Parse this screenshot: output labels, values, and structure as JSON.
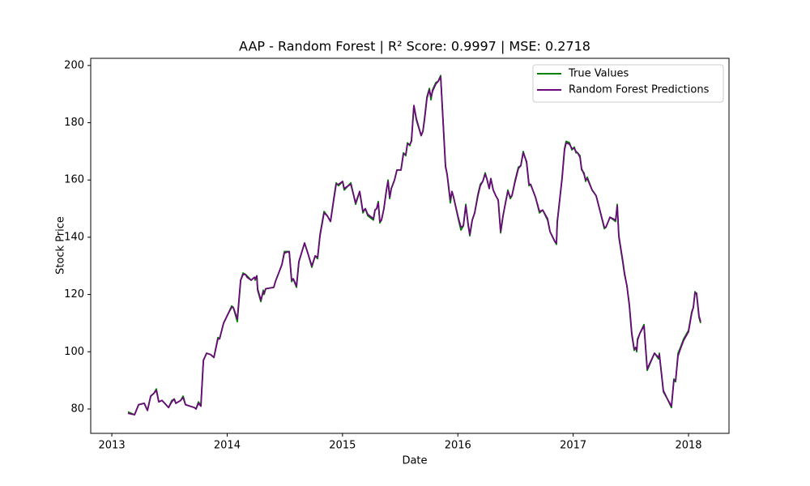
{
  "chart_data": {
    "type": "line",
    "title": "AAP - Random Forest | R² Score: 0.9997 | MSE: 0.2718",
    "x_label": "Date",
    "y_label": "Stock Price",
    "x": [
      2013.14,
      2013.197,
      2013.232,
      2013.281,
      2013.309,
      2013.337,
      2013.365,
      2013.386,
      2013.407,
      2013.435,
      2013.47,
      2013.492,
      2013.52,
      2013.541,
      2013.555,
      2013.576,
      2013.597,
      2013.618,
      2013.639,
      2013.716,
      2013.73,
      2013.751,
      2013.772,
      2013.794,
      2013.822,
      2013.857,
      2013.885,
      2013.92,
      2013.934,
      2013.969,
      2014.011,
      2014.039,
      2014.053,
      2014.088,
      2014.117,
      2014.138,
      2014.159,
      2014.173,
      2014.208,
      2014.236,
      2014.243,
      2014.257,
      2014.264,
      2014.292,
      2014.313,
      2014.32,
      2014.334,
      2014.404,
      2014.418,
      2014.461,
      2014.475,
      2014.496,
      2014.538,
      2014.559,
      2014.573,
      2014.601,
      2014.622,
      2014.671,
      2014.699,
      2014.734,
      2014.763,
      2014.784,
      2014.805,
      2014.84,
      2014.868,
      2014.896,
      2014.924,
      2014.945,
      2014.966,
      2015.001,
      2015.015,
      2015.05,
      2015.072,
      2015.114,
      2015.149,
      2015.177,
      2015.198,
      2015.219,
      2015.268,
      2015.282,
      2015.296,
      2015.31,
      2015.324,
      2015.338,
      2015.359,
      2015.381,
      2015.395,
      2015.409,
      2015.423,
      2015.451,
      2015.472,
      2015.507,
      2015.528,
      2015.549,
      2015.563,
      2015.584,
      2015.598,
      2015.619,
      2015.64,
      2015.682,
      2015.697,
      2015.711,
      2015.732,
      2015.753,
      2015.767,
      2015.781,
      2015.809,
      2015.83,
      2015.851,
      2015.893,
      2015.907,
      2015.935,
      2015.949,
      2015.963,
      2016.006,
      2016.027,
      2016.048,
      2016.069,
      2016.09,
      2016.104,
      2016.125,
      2016.146,
      2016.174,
      2016.195,
      2016.216,
      2016.237,
      2016.251,
      2016.272,
      2016.286,
      2016.307,
      2016.329,
      2016.35,
      2016.371,
      2016.392,
      2016.413,
      2016.434,
      2016.455,
      2016.469,
      2016.497,
      2016.525,
      2016.546,
      2016.567,
      2016.596,
      2016.617,
      2016.631,
      2016.673,
      2016.708,
      2016.736,
      2016.778,
      2016.799,
      2016.841,
      2016.855,
      2016.862,
      2016.904,
      2016.925,
      2016.939,
      2016.968,
      2016.989,
      2017.01,
      2017.024,
      2017.038,
      2017.059,
      2017.073,
      2017.094,
      2017.108,
      2017.122,
      2017.164,
      2017.199,
      2017.234,
      2017.27,
      2017.284,
      2017.319,
      2017.368,
      2017.382,
      2017.396,
      2017.431,
      2017.445,
      2017.466,
      2017.487,
      2017.508,
      2017.529,
      2017.543,
      2017.551,
      2017.558,
      2017.579,
      2017.614,
      2017.642,
      2017.705,
      2017.74,
      2017.747,
      2017.782,
      2017.817,
      2017.852,
      2017.873,
      2017.888,
      2017.909,
      2017.93,
      2017.958,
      2018.0,
      2018.028,
      2018.042,
      2018.056,
      2018.07,
      2018.091,
      2018.105
    ],
    "series": [
      {
        "name": "True Values",
        "color": "#008000",
        "values": [
          79,
          78,
          81.5,
          82,
          79.5,
          84.5,
          85.5,
          87,
          82.5,
          83,
          81.5,
          80.5,
          83,
          83.5,
          82,
          82.5,
          83,
          84.5,
          81.5,
          80.5,
          80,
          82.5,
          81,
          97,
          99.5,
          99,
          98,
          105,
          104.5,
          110,
          113.5,
          116,
          115.5,
          110.5,
          125,
          127.5,
          127,
          126.5,
          125,
          126,
          125,
          126.5,
          121.5,
          117.5,
          121.5,
          120,
          122,
          122.5,
          124.5,
          129,
          130.5,
          135,
          135,
          124.5,
          125.5,
          122.5,
          131.5,
          138,
          134.5,
          129.5,
          133.5,
          132.5,
          141,
          149,
          147.5,
          145.5,
          153.5,
          159,
          158,
          159.5,
          156.5,
          158,
          159,
          151.5,
          156,
          148.5,
          150,
          147.5,
          146,
          149.5,
          150,
          152.5,
          145,
          146,
          150,
          156.5,
          160,
          153.5,
          157,
          160,
          163.5,
          163.5,
          169.5,
          168.5,
          173,
          172,
          174,
          186,
          181,
          175.5,
          177,
          181.5,
          189,
          192,
          188,
          191.5,
          194,
          194.5,
          196.5,
          164.5,
          162,
          152,
          156,
          154,
          146,
          142.5,
          144,
          151.5,
          144,
          140.5,
          146,
          148.5,
          155,
          158.5,
          159.5,
          162.5,
          160.5,
          157,
          160.5,
          156.5,
          154.5,
          153,
          141.5,
          147.5,
          152,
          156.5,
          153.5,
          154.5,
          160,
          164.5,
          165,
          170,
          166,
          158,
          158.5,
          154,
          148.5,
          149.5,
          146,
          142,
          138.5,
          137.5,
          145,
          161,
          171,
          173.5,
          173,
          170.5,
          171.5,
          169.5,
          169.5,
          168.5,
          163.5,
          162.5,
          159.5,
          161,
          156.5,
          154.5,
          149,
          143,
          143.5,
          147,
          145.5,
          151.5,
          140,
          131,
          127,
          123,
          116,
          106,
          100.5,
          101.5,
          100,
          104.5,
          106.5,
          109.5,
          93.5,
          99.5,
          97.5,
          99.5,
          86,
          83.5,
          80.5,
          90.5,
          89.5,
          99.5,
          101.5,
          104.5,
          107.5,
          114,
          115.5,
          121,
          120,
          112,
          110
        ]
      },
      {
        "name": "Random Forest Predictions",
        "color": "#6a0a7a",
        "values": [
          78.5,
          78,
          81.5,
          82,
          79.5,
          84.5,
          85.5,
          86.5,
          82.5,
          83,
          81.5,
          80.5,
          82.5,
          83.5,
          82,
          82.5,
          83,
          84,
          81.5,
          80.5,
          80,
          82,
          81,
          97,
          99.5,
          99,
          98,
          104.5,
          104.5,
          110,
          113.5,
          115.5,
          115.5,
          111.5,
          125,
          127,
          127,
          126,
          125,
          126,
          125.5,
          126.5,
          122,
          118,
          121,
          120.5,
          122,
          122.5,
          124.5,
          129,
          130.5,
          134.5,
          135,
          125,
          125.5,
          123,
          131.5,
          138,
          134.5,
          130,
          133.5,
          133,
          140.5,
          148.5,
          147.5,
          145.5,
          153,
          158.5,
          158.5,
          159.5,
          157,
          158,
          158.5,
          152,
          156,
          149,
          150,
          148,
          146.5,
          149.5,
          150,
          152,
          145.5,
          146,
          150,
          156.5,
          159.5,
          154,
          157,
          160,
          163.5,
          163.5,
          169,
          169,
          172.5,
          172.5,
          173.5,
          186,
          181.5,
          175.5,
          177,
          181,
          188.5,
          191.5,
          189,
          191,
          193.5,
          194.5,
          196,
          165,
          162,
          153,
          156,
          154,
          146.5,
          143.5,
          144,
          151,
          144.5,
          141,
          146,
          148.5,
          154.5,
          158,
          159.5,
          162,
          160.5,
          157,
          160.5,
          156.5,
          154.5,
          153,
          142,
          147.5,
          152,
          156,
          154,
          154.5,
          159.5,
          164,
          165,
          169.5,
          166.5,
          158.5,
          158.5,
          154,
          149,
          149.5,
          146.5,
          142,
          138.5,
          138,
          145.5,
          160.5,
          170.5,
          173,
          172.5,
          171,
          171,
          170,
          169.5,
          168,
          164,
          162,
          160,
          160.5,
          156.5,
          154.5,
          149,
          143.5,
          143.5,
          147,
          146,
          151,
          140.5,
          131.5,
          127.5,
          123,
          116.5,
          106.5,
          101,
          101.5,
          100.5,
          104,
          106.5,
          109,
          94,
          99.5,
          98,
          99,
          86.5,
          83.5,
          81,
          90,
          90,
          98.5,
          101,
          104,
          107,
          113.5,
          115.5,
          120.5,
          120.5,
          112.5,
          110.5
        ]
      }
    ],
    "xlim": [
      2012.817,
      2018.351
    ],
    "xticks": [
      2013,
      2014,
      2015,
      2016,
      2017,
      2018
    ],
    "ylim": [
      71.5,
      202.5
    ],
    "yticks": [
      80,
      100,
      120,
      140,
      160,
      180,
      200
    ],
    "grid": false,
    "legend": "upper right"
  }
}
